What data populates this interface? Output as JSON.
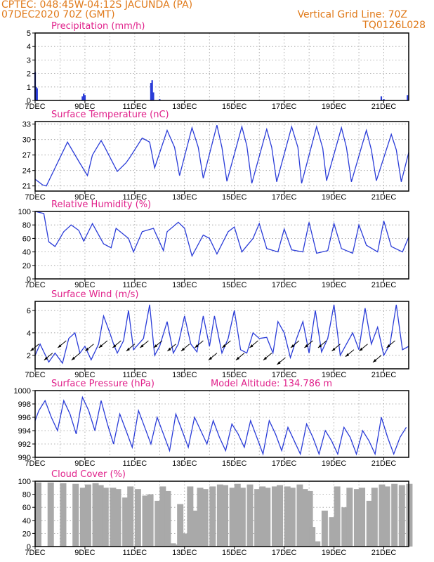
{
  "header": {
    "line1": "CPTEC:  048:45W-04:12S  JACUNDA (PA)",
    "line2": "07DEC2020 70Z (GMT)",
    "right1": "Vertical Grid Line: 70Z",
    "right2": "TQ0126L028"
  },
  "colors": {
    "header": "#e07a1a",
    "title": "#e0208a",
    "series": "#2a3cd8",
    "cloud": "#a9a9a9",
    "grid": "#9a9a9a"
  },
  "date_labels": [
    "7DEC",
    "9DEC",
    "11DEC",
    "13DEC",
    "15DEC",
    "17DEC",
    "19DEC",
    "21DEC"
  ],
  "chart_data": [
    {
      "type": "bar",
      "title": "Precipitation (mm/h)",
      "ylim": [
        0,
        5
      ],
      "yticks": [
        "0",
        "1",
        "2",
        "3",
        "4",
        "5"
      ],
      "x_days": [
        0.0,
        0.04,
        0.08,
        1.9,
        1.95,
        2.0,
        4.65,
        4.7,
        4.75,
        5.0,
        13.9,
        14.0,
        14.95
      ],
      "values": [
        2.1,
        1.0,
        0.9,
        0.3,
        0.5,
        0.4,
        1.3,
        1.5,
        0.6,
        0.1,
        0.3,
        0.1,
        0.4
      ]
    },
    {
      "type": "line",
      "title": "Surface Temperature (nC)",
      "ylim": [
        20,
        33.5
      ],
      "yticks": [
        "21",
        "24",
        "27",
        "30",
        "33"
      ],
      "x_days": [
        0.0,
        0.3,
        0.45,
        0.8,
        1.3,
        1.75,
        2.1,
        2.3,
        2.65,
        2.8,
        3.3,
        3.65,
        3.8,
        4.3,
        4.6,
        4.8,
        5.3,
        5.6,
        5.8,
        6.3,
        6.55,
        6.75,
        7.3,
        7.5,
        7.7,
        8.3,
        8.5,
        8.7,
        9.3,
        9.5,
        9.7,
        10.3,
        10.55,
        10.7,
        11.3,
        11.55,
        11.7,
        12.3,
        12.5,
        12.7,
        13.3,
        13.5,
        13.7,
        14.3,
        14.5,
        14.7,
        15.0
      ],
      "values": [
        22.3,
        21.2,
        21.0,
        24.5,
        29.5,
        25.8,
        23.0,
        27.0,
        29.8,
        28.5,
        23.8,
        25.5,
        26.5,
        30.3,
        29.5,
        24.5,
        31.8,
        28.5,
        23.0,
        32.3,
        28.5,
        22.5,
        32.8,
        28.5,
        21.9,
        32.5,
        28.8,
        21.5,
        32.0,
        28.5,
        21.8,
        32.5,
        28.5,
        21.5,
        32.5,
        28.3,
        22.0,
        32.3,
        28.5,
        21.8,
        31.8,
        28.0,
        22.0,
        31.0,
        28.0,
        21.8,
        27.5
      ]
    },
    {
      "type": "line",
      "title": "Relative Humidity (%)",
      "ylim": [
        0,
        100
      ],
      "yticks": [
        "0",
        "20",
        "40",
        "60",
        "80",
        "100"
      ],
      "x_days": [
        0.0,
        0.35,
        0.55,
        0.8,
        1.15,
        1.45,
        1.75,
        1.95,
        2.3,
        2.75,
        3.05,
        3.25,
        3.75,
        3.95,
        4.3,
        4.75,
        5.15,
        5.3,
        5.75,
        6.0,
        6.3,
        6.75,
        7.0,
        7.3,
        7.75,
        8.0,
        8.3,
        8.75,
        9.0,
        9.3,
        9.75,
        10.0,
        10.3,
        10.75,
        11.0,
        11.3,
        11.75,
        12.0,
        12.3,
        12.75,
        13.0,
        13.3,
        13.75,
        14.0,
        14.3,
        14.75,
        15.0
      ],
      "values": [
        100,
        97,
        55,
        48,
        70,
        80,
        72,
        56,
        82,
        52,
        46,
        75,
        60,
        40,
        70,
        75,
        42,
        70,
        84,
        75,
        34,
        65,
        60,
        37,
        70,
        77,
        40,
        60,
        82,
        45,
        40,
        74,
        43,
        40,
        84,
        38,
        42,
        82,
        45,
        38,
        80,
        50,
        40,
        86,
        48,
        40,
        62
      ]
    },
    {
      "type": "line",
      "title": "Surface Wind (m/s)",
      "ylim": [
        0.8,
        6.8
      ],
      "yticks": [
        "2",
        "4",
        "6"
      ],
      "x_days": [
        0.0,
        0.2,
        0.35,
        0.55,
        0.8,
        1.1,
        1.35,
        1.6,
        1.8,
        2.0,
        2.25,
        2.55,
        2.75,
        3.0,
        3.15,
        3.3,
        3.55,
        3.75,
        3.95,
        4.15,
        4.35,
        4.6,
        4.8,
        5.0,
        5.3,
        5.55,
        5.75,
        6.0,
        6.25,
        6.5,
        6.75,
        7.0,
        7.2,
        7.5,
        7.75,
        8.0,
        8.25,
        8.5,
        8.75,
        9.0,
        9.3,
        9.55,
        9.75,
        10.0,
        10.25,
        10.5,
        10.75,
        11.0,
        11.25,
        11.5,
        11.75,
        12.0,
        12.25,
        12.5,
        12.75,
        13.0,
        13.25,
        13.5,
        13.75,
        14.0,
        14.25,
        14.5,
        14.75,
        15.0
      ],
      "values": [
        2.0,
        3.0,
        2.3,
        1.4,
        2.2,
        1.3,
        3.5,
        4.0,
        2.2,
        2.8,
        1.6,
        3.0,
        5.5,
        4.0,
        3.0,
        2.2,
        3.3,
        6.0,
        2.5,
        3.0,
        3.5,
        6.5,
        2.0,
        2.8,
        5.0,
        2.2,
        3.0,
        5.5,
        3.0,
        2.3,
        5.5,
        2.8,
        5.5,
        2.2,
        3.5,
        6.0,
        2.5,
        2.2,
        4.0,
        3.5,
        3.6,
        2.2,
        5.0,
        4.0,
        1.8,
        3.5,
        5.0,
        2.2,
        6.0,
        2.3,
        3.5,
        6.5,
        2.0,
        3.0,
        4.0,
        2.5,
        6.2,
        3.0,
        4.5,
        2.0,
        3.0,
        6.5,
        2.5,
        2.8
      ]
    },
    {
      "type": "line",
      "title": "Surface Pressure (hPa)",
      "annotation": "Model Altitude: 134.786 m",
      "ylim": [
        990,
        1000
      ],
      "yticks": [
        "990",
        "992",
        "994",
        "996",
        "998",
        "1000"
      ],
      "x_days": [
        0.0,
        0.15,
        0.4,
        0.65,
        0.9,
        1.15,
        1.4,
        1.65,
        1.9,
        2.15,
        2.4,
        2.65,
        2.9,
        3.15,
        3.4,
        3.65,
        3.9,
        4.15,
        4.4,
        4.65,
        4.9,
        5.15,
        5.4,
        5.65,
        5.9,
        6.15,
        6.4,
        6.65,
        6.9,
        7.15,
        7.4,
        7.65,
        7.9,
        8.15,
        8.4,
        8.65,
        8.9,
        9.15,
        9.4,
        9.65,
        9.9,
        10.15,
        10.4,
        10.65,
        10.9,
        11.15,
        11.4,
        11.65,
        11.9,
        12.15,
        12.4,
        12.65,
        12.9,
        13.15,
        13.4,
        13.65,
        13.9,
        14.15,
        14.4,
        14.65,
        14.9
      ],
      "values": [
        995.5,
        997.0,
        998.5,
        996.0,
        994.0,
        998.5,
        996.5,
        993.5,
        999.0,
        997.0,
        994.0,
        998.5,
        995.0,
        992.0,
        996.5,
        994.0,
        991.5,
        997.0,
        994.5,
        992.0,
        996.0,
        993.5,
        991.0,
        996.5,
        994.0,
        991.5,
        996.0,
        994.0,
        992.0,
        995.5,
        993.0,
        991.0,
        995.0,
        993.5,
        991.5,
        995.5,
        993.0,
        990.5,
        995.5,
        993.5,
        991.0,
        994.5,
        992.5,
        990.5,
        995.0,
        993.0,
        990.5,
        994.0,
        992.5,
        990.5,
        994.5,
        993.0,
        990.5,
        994.0,
        992.5,
        990.5,
        996.0,
        993.0,
        990.5,
        993.0,
        994.5
      ]
    },
    {
      "type": "bar",
      "title": "Cloud Cover (%)",
      "ylim": [
        0,
        100
      ],
      "yticks": [
        "0",
        "20",
        "40",
        "60",
        "80",
        "100"
      ],
      "x_days": [
        0.0,
        0.5,
        1.0,
        1.5,
        1.8,
        2.0,
        2.3,
        2.5,
        2.7,
        3.0,
        3.2,
        3.5,
        3.7,
        4.0,
        4.3,
        4.5,
        4.8,
        5.0,
        5.2,
        5.4,
        5.5,
        5.7,
        5.9,
        6.1,
        6.3,
        6.5,
        6.7,
        7.0,
        7.3,
        7.5,
        7.8,
        8.0,
        8.2,
        8.5,
        8.8,
        9.0,
        9.2,
        9.5,
        9.7,
        10.0,
        10.2,
        10.5,
        10.7,
        10.9,
        11.0,
        11.2,
        11.5,
        11.8,
        12.0,
        12.3,
        12.5,
        12.8,
        13.0,
        13.3,
        13.5,
        13.8,
        14.0,
        14.3,
        14.6,
        14.9
      ],
      "values": [
        98,
        98,
        97,
        96,
        90,
        95,
        97,
        94,
        90,
        90,
        88,
        75,
        92,
        88,
        78,
        80,
        70,
        92,
        85,
        5,
        3,
        65,
        20,
        92,
        55,
        90,
        88,
        92,
        95,
        94,
        90,
        96,
        90,
        95,
        88,
        92,
        90,
        92,
        94,
        92,
        90,
        95,
        88,
        85,
        30,
        8,
        55,
        45,
        92,
        60,
        90,
        88,
        90,
        70,
        90,
        95,
        92,
        96,
        94,
        96
      ]
    }
  ]
}
